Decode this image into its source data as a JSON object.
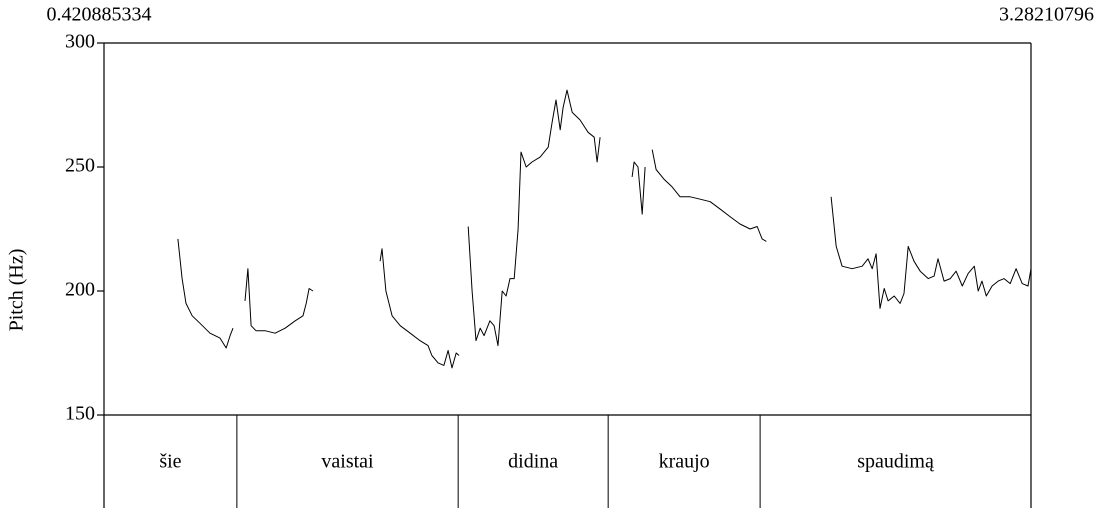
{
  "chart_data": {
    "type": "line",
    "y_label": "Pitch (Hz)",
    "xlim": [
      0.420885334,
      3.28210796
    ],
    "x_limit_labels": [
      "0.420885334",
      "3.28210796"
    ],
    "ylim": [
      150,
      300
    ],
    "yticks": [
      150,
      200,
      250,
      300
    ],
    "series": [
      {
        "name": "Pitch",
        "color": "#000000",
        "x": [
          0.649,
          0.662,
          0.674,
          0.693,
          0.717,
          0.748,
          0.779,
          0.798,
          0.81,
          0.819,
          null,
          0.856,
          0.865,
          0.875,
          0.89,
          0.918,
          0.949,
          0.98,
          1.011,
          1.035,
          1.045,
          1.054,
          1.066,
          null,
          1.273,
          1.279,
          1.291,
          1.31,
          1.335,
          1.366,
          1.396,
          1.421,
          1.433,
          1.452,
          1.47,
          1.483,
          1.495,
          1.508,
          1.517,
          null,
          1.545,
          1.557,
          1.569,
          1.582,
          1.594,
          1.612,
          1.625,
          1.637,
          1.65,
          1.662,
          1.674,
          1.687,
          1.699,
          1.708,
          1.724,
          1.742,
          1.767,
          1.792,
          1.804,
          1.816,
          1.829,
          1.838,
          1.85,
          1.866,
          1.89,
          1.915,
          1.934,
          1.943,
          1.952,
          null,
          2.051,
          2.057,
          2.069,
          2.082,
          2.091,
          null,
          2.113,
          2.125,
          2.15,
          2.174,
          2.199,
          2.23,
          2.261,
          2.292,
          2.323,
          2.353,
          2.384,
          2.415,
          2.437,
          2.452,
          2.465,
          null,
          2.665,
          2.681,
          2.699,
          2.73,
          2.761,
          2.779,
          2.792,
          2.804,
          2.816,
          2.829,
          2.841,
          2.86,
          2.878,
          2.89,
          2.903,
          2.921,
          2.94,
          2.965,
          2.983,
          2.995,
          3.014,
          3.033,
          3.051,
          3.07,
          3.088,
          3.107,
          3.119,
          3.131,
          3.144,
          3.162,
          3.181,
          3.199,
          3.218,
          3.236,
          3.255,
          3.273,
          3.282
        ],
        "values": [
          221,
          205,
          195,
          190,
          187,
          183,
          181,
          177,
          182,
          185,
          null,
          196,
          209,
          186,
          184,
          184,
          183,
          185,
          188,
          190,
          195,
          201,
          200,
          null,
          212,
          217,
          200,
          190,
          186,
          183,
          180,
          178,
          174,
          171,
          170,
          176,
          169,
          175,
          174,
          null,
          226,
          200,
          180,
          185,
          182,
          188,
          186,
          178,
          200,
          198,
          205,
          205,
          225,
          256,
          250,
          252,
          254,
          258,
          268,
          277,
          265,
          274,
          281,
          272,
          269,
          264,
          262,
          252,
          262,
          null,
          246,
          252,
          250,
          231,
          250,
          null,
          257,
          249,
          245,
          242,
          238,
          238,
          237,
          236,
          233,
          230,
          227,
          225,
          226,
          221,
          220,
          null,
          238,
          218,
          210,
          209,
          210,
          213,
          209,
          215,
          193,
          201,
          196,
          198,
          195,
          199,
          218,
          212,
          208,
          205,
          206,
          213,
          204,
          205,
          208,
          202,
          207,
          210,
          200,
          204,
          198,
          202,
          204,
          205,
          203,
          209,
          203,
          202,
          209
        ]
      }
    ],
    "tier": {
      "words": [
        "šie",
        "vaistai",
        "didina",
        "kraujo",
        "spaudimą"
      ],
      "boundaries": [
        0.831,
        1.514,
        1.977,
        2.446
      ]
    }
  }
}
